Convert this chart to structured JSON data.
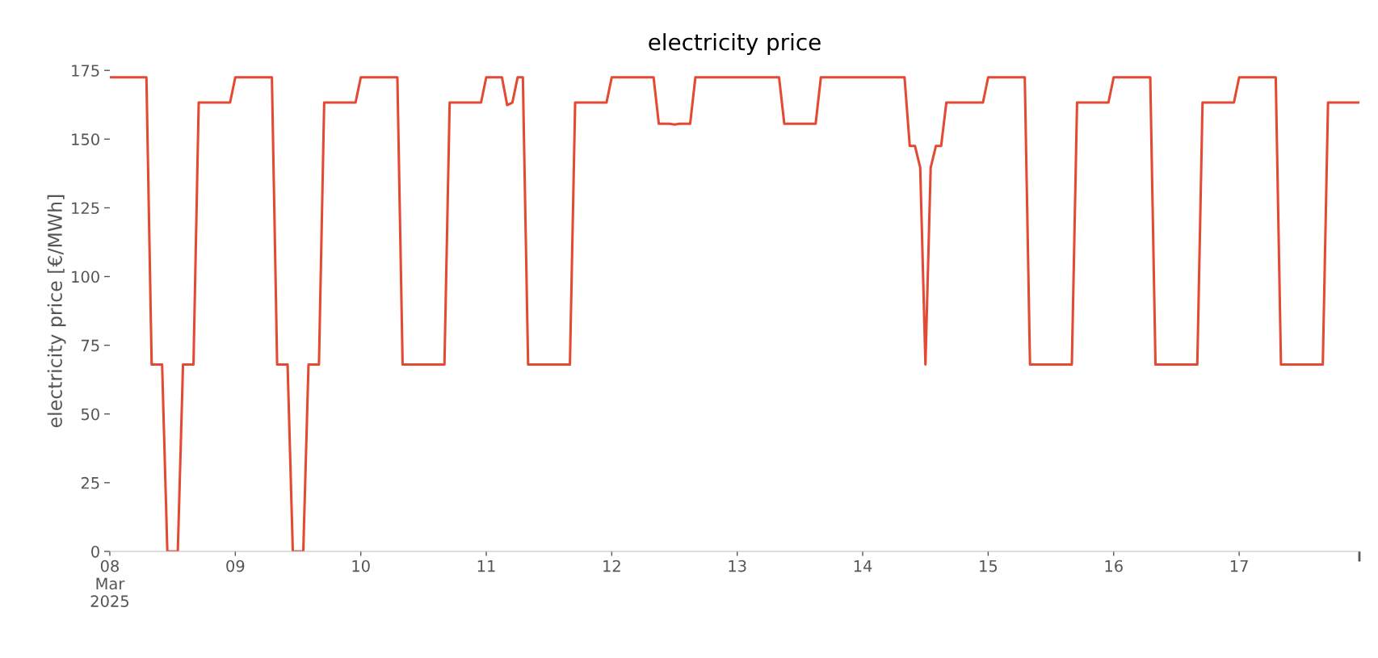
{
  "chart_data": {
    "type": "line",
    "title": "electricity price",
    "ylabel": "electricity price [€/MWh]",
    "series": [
      {
        "color": "#e24a33",
        "x": [
          "2025-03-08T00:00",
          "2025-03-08T07:00",
          "2025-03-08T08:00",
          "2025-03-08T10:00",
          "2025-03-08T11:00",
          "2025-03-08T13:00",
          "2025-03-08T14:00",
          "2025-03-08T16:00",
          "2025-03-08T17:00",
          "2025-03-08T23:00",
          "2025-03-09T00:00",
          "2025-03-09T07:00",
          "2025-03-09T08:00",
          "2025-03-09T10:00",
          "2025-03-09T11:00",
          "2025-03-09T13:00",
          "2025-03-09T14:00",
          "2025-03-09T16:00",
          "2025-03-09T17:00",
          "2025-03-09T23:00",
          "2025-03-10T00:00",
          "2025-03-10T07:00",
          "2025-03-10T08:00",
          "2025-03-10T16:00",
          "2025-03-10T17:00",
          "2025-03-10T23:00",
          "2025-03-11T00:00",
          "2025-03-11T03:00",
          "2025-03-11T04:00",
          "2025-03-11T05:00",
          "2025-03-11T06:00",
          "2025-03-11T07:00",
          "2025-03-11T08:00",
          "2025-03-11T16:00",
          "2025-03-11T17:00",
          "2025-03-11T23:00",
          "2025-03-12T00:00",
          "2025-03-12T08:00",
          "2025-03-12T09:00",
          "2025-03-12T11:00",
          "2025-03-12T12:00",
          "2025-03-12T13:00",
          "2025-03-12T15:00",
          "2025-03-12T16:00",
          "2025-03-13T08:00",
          "2025-03-13T09:00",
          "2025-03-13T15:00",
          "2025-03-13T16:00",
          "2025-03-14T08:00",
          "2025-03-14T09:00",
          "2025-03-14T10:00",
          "2025-03-14T11:00",
          "2025-03-14T12:00",
          "2025-03-14T13:00",
          "2025-03-14T14:00",
          "2025-03-14T15:00",
          "2025-03-14T16:00",
          "2025-03-14T23:00",
          "2025-03-15T00:00",
          "2025-03-15T07:00",
          "2025-03-15T08:00",
          "2025-03-15T16:00",
          "2025-03-15T17:00",
          "2025-03-15T23:00",
          "2025-03-16T00:00",
          "2025-03-16T07:00",
          "2025-03-16T08:00",
          "2025-03-16T16:00",
          "2025-03-16T17:00",
          "2025-03-16T23:00",
          "2025-03-17T00:00",
          "2025-03-17T07:00",
          "2025-03-17T08:00",
          "2025-03-17T16:00",
          "2025-03-17T17:00",
          "2025-03-17T23:00"
        ],
        "values": [
          172.5,
          172.5,
          68,
          68,
          0,
          0,
          68,
          68,
          163.3,
          163.3,
          172.5,
          172.5,
          68,
          68,
          0,
          0,
          68,
          68,
          163.3,
          163.3,
          172.5,
          172.5,
          68,
          68,
          163.3,
          163.3,
          172.5,
          172.5,
          162.4,
          163.3,
          172.5,
          172.5,
          68,
          68,
          163.3,
          163.3,
          172.5,
          172.5,
          155.6,
          155.6,
          155.3,
          155.6,
          155.6,
          172.5,
          172.5,
          155.6,
          155.6,
          172.5,
          172.5,
          147.5,
          147.5,
          139.6,
          68,
          139.6,
          147.5,
          147.5,
          163.3,
          163.3,
          172.5,
          172.5,
          68,
          68,
          163.3,
          163.3,
          172.5,
          172.5,
          68,
          68,
          163.3,
          163.3,
          172.5,
          172.5,
          68,
          68,
          163.3,
          163.3
        ]
      }
    ],
    "xticks": [
      {
        "value": "2025-03-08",
        "label": "08\nMar\n2025"
      },
      {
        "value": "2025-03-09",
        "label": "09"
      },
      {
        "value": "2025-03-10",
        "label": "10"
      },
      {
        "value": "2025-03-11",
        "label": "11"
      },
      {
        "value": "2025-03-12",
        "label": "12"
      },
      {
        "value": "2025-03-13",
        "label": "13"
      },
      {
        "value": "2025-03-14",
        "label": "14"
      },
      {
        "value": "2025-03-15",
        "label": "15"
      },
      {
        "value": "2025-03-16",
        "label": "16"
      },
      {
        "value": "2025-03-17",
        "label": "17"
      },
      {
        "value": "2025-03-17T23:00",
        "label": null
      }
    ],
    "ylim": [
      0,
      175
    ],
    "yticks": [
      0,
      25,
      50,
      75,
      100,
      125,
      150,
      175
    ],
    "xlim": [
      "2025-03-08T00:00",
      "2025-03-17T23:00"
    ],
    "line_style": "solid",
    "marker": "none"
  }
}
